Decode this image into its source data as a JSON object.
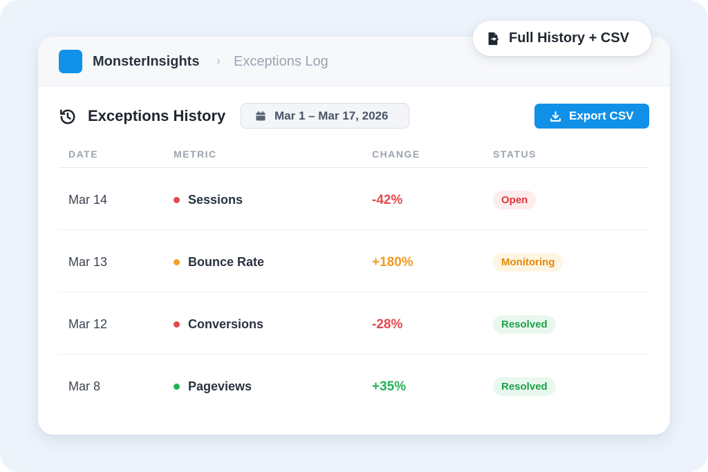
{
  "header": {
    "brand": "MonsterInsights",
    "separator": "›",
    "current_page": "Exceptions Log"
  },
  "floating_pill": {
    "label": "Full History + CSV",
    "icon": "file-export-icon"
  },
  "section": {
    "title": "Exceptions History",
    "icon": "history-icon",
    "date_range": "Mar 1 – Mar 17, 2026",
    "date_icon": "calendar-icon",
    "export_label": "Export CSV",
    "export_icon": "download-icon"
  },
  "table": {
    "columns": [
      "DATE",
      "METRIC",
      "CHANGE",
      "STATUS"
    ],
    "rows": [
      {
        "date": "Mar 14",
        "metric": "Sessions",
        "change": "-42%",
        "status": "Open",
        "dot_color": "#e5484d",
        "change_color": "#e5484d",
        "status_bg": "#fdecec",
        "status_color": "#e0353b"
      },
      {
        "date": "Mar 13",
        "metric": "Bounce Rate",
        "change": "+180%",
        "status": "Monitoring",
        "dot_color": "#f5a123",
        "change_color": "#f29a1e",
        "status_bg": "#fff5e3",
        "status_color": "#e08a0b"
      },
      {
        "date": "Mar 12",
        "metric": "Conversions",
        "change": "-28%",
        "status": "Resolved",
        "dot_color": "#e5484d",
        "change_color": "#e5484d",
        "status_bg": "#e9f8ee",
        "status_color": "#1e9e4a"
      },
      {
        "date": "Mar 8",
        "metric": "Pageviews",
        "change": "+35%",
        "status": "Resolved",
        "dot_color": "#22b357",
        "change_color": "#22b357",
        "status_bg": "#e9f8ee",
        "status_color": "#1e9e4a"
      }
    ]
  },
  "colors": {
    "accent": "#1190e8",
    "background": "#edf3fb"
  }
}
